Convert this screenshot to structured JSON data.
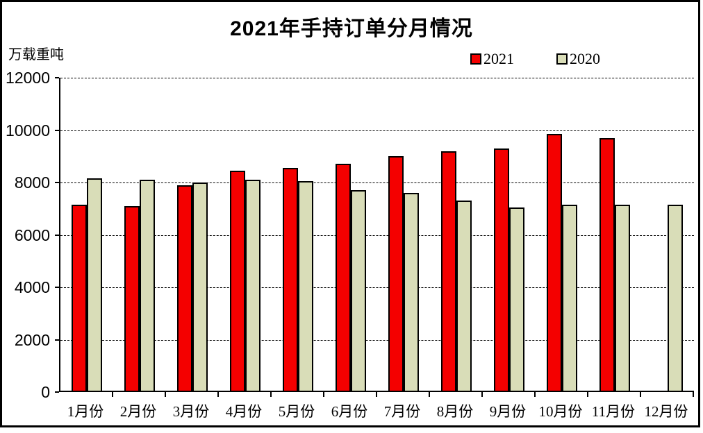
{
  "chart_data": {
    "type": "bar",
    "title": "2021年手持订单分月情况",
    "ylabel": "万载重吨",
    "xlabel": "",
    "ylim": [
      0,
      12000
    ],
    "ytick_step": 2000,
    "grid": true,
    "legend_position": "top-right",
    "categories": [
      "1月份",
      "2月份",
      "3月份",
      "4月份",
      "5月份",
      "6月份",
      "7月份",
      "8月份",
      "9月份",
      "10月份",
      "11月份",
      "12月份"
    ],
    "series": [
      {
        "name": "2021",
        "color": "#F40000",
        "values": [
          7100,
          7050,
          7850,
          8400,
          8500,
          8650,
          8950,
          9150,
          9250,
          9800,
          9650,
          null
        ]
      },
      {
        "name": "2020",
        "color": "#D9DDB8",
        "values": [
          8100,
          8050,
          7950,
          8050,
          8000,
          7650,
          7550,
          7250,
          7000,
          7100,
          7100,
          7100
        ]
      }
    ]
  }
}
